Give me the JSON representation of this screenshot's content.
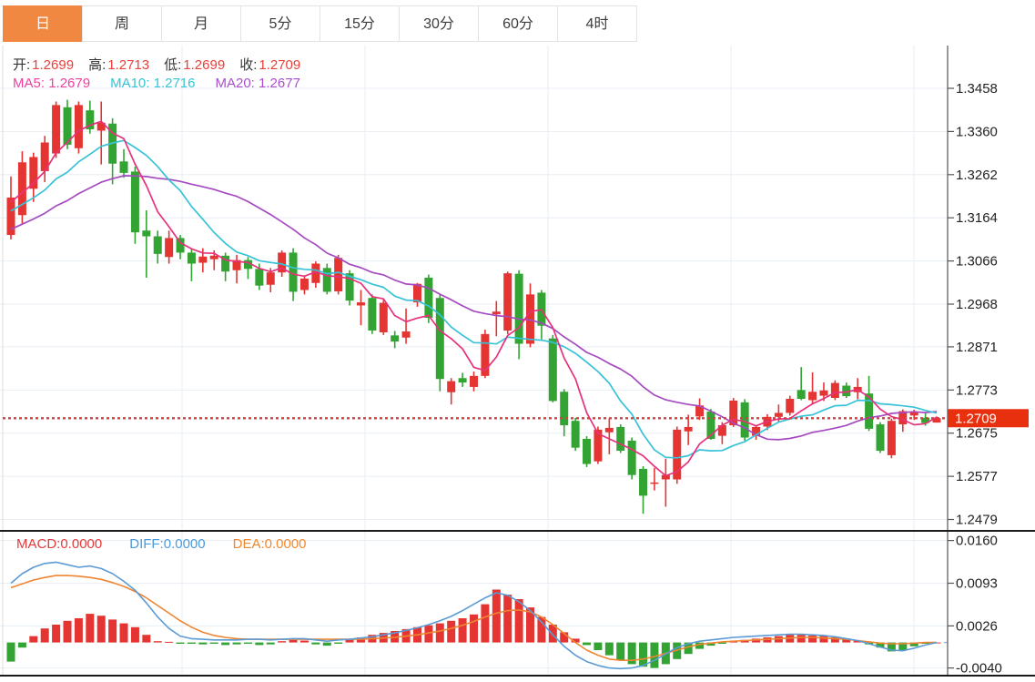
{
  "toolbar": {
    "tabs": [
      {
        "label": "日",
        "active": true
      },
      {
        "label": "周",
        "active": false
      },
      {
        "label": "月",
        "active": false
      },
      {
        "label": "5分",
        "active": false
      },
      {
        "label": "15分",
        "active": false
      },
      {
        "label": "30分",
        "active": false
      },
      {
        "label": "60分",
        "active": false
      },
      {
        "label": "4时",
        "active": false
      }
    ]
  },
  "ohlc": {
    "open_label": "开:",
    "open": "1.2699",
    "high_label": "高:",
    "high": "1.2713",
    "low_label": "低:",
    "low": "1.2699",
    "close_label": "收:",
    "close": "1.2709"
  },
  "ma": {
    "ma5_label": "MA5:",
    "ma5": "1.2679",
    "ma10_label": "MA10:",
    "ma10": "1.2716",
    "ma20_label": "MA20:",
    "ma20": "1.2677"
  },
  "macd_header": {
    "macd_label": "MACD:",
    "macd": "0.0000",
    "diff_label": "DIFF:",
    "diff": "0.0000",
    "dea_label": "DEA:",
    "dea": "0.0000"
  },
  "colors": {
    "up_candle": "#e53532",
    "down_candle": "#33a433",
    "ma5_line": "#e8317c",
    "ma10_line": "#38c2d8",
    "ma20_line": "#a54ac0",
    "diff_line": "#5b9bd5",
    "dea_line": "#ee8532",
    "price_badge": "#e8300f",
    "dotted_price_line": "#df3b3b",
    "active_tab": "#f08842",
    "grid": "#e8eef3",
    "axis": "#555555",
    "axis_text": "#222222",
    "panel_border": "#1a1a1a"
  },
  "chart_data": [
    {
      "type": "candlestick",
      "title": "Daily (日) candlestick price chart with MA5/MA10/MA20 overlays",
      "legend_position": "top-left",
      "grid": true,
      "ylabel": "price",
      "y_ticks": [
        1.3458,
        1.336,
        1.3262,
        1.3164,
        1.3066,
        1.2968,
        1.2871,
        1.2773,
        1.2675,
        1.2577,
        1.2479
      ],
      "current_price": 1.2709,
      "last_candle": {
        "open": 1.2699,
        "high": 1.2713,
        "low": 1.2699,
        "close": 1.2709
      },
      "ma_values": {
        "ma5": 1.2679,
        "ma10": 1.2716,
        "ma20": 1.2677
      },
      "ohlc_format": [
        "open",
        "high",
        "low",
        "close"
      ],
      "candles": [
        [
          1.3125,
          1.3258,
          1.3115,
          1.321
        ],
        [
          1.317,
          1.3315,
          1.315,
          1.329
        ],
        [
          1.323,
          1.3312,
          1.32,
          1.3302
        ],
        [
          1.327,
          1.335,
          1.3245,
          1.3335
        ],
        [
          1.331,
          1.3428,
          1.33,
          1.342
        ],
        [
          1.3415,
          1.3432,
          1.332,
          1.333
        ],
        [
          1.3322,
          1.3428,
          1.331,
          1.342
        ],
        [
          1.3408,
          1.343,
          1.3355,
          1.3365
        ],
        [
          1.3362,
          1.3428,
          1.3285,
          1.338
        ],
        [
          1.3378,
          1.339,
          1.324,
          1.3287
        ],
        [
          1.3292,
          1.332,
          1.3255,
          1.3266
        ],
        [
          1.3269,
          1.328,
          1.3105,
          1.3131
        ],
        [
          1.3135,
          1.3181,
          1.3028,
          1.3122
        ],
        [
          1.3122,
          1.3135,
          1.306,
          1.3082
        ],
        [
          1.3075,
          1.3135,
          1.306,
          1.3118
        ],
        [
          1.3118,
          1.3125,
          1.307,
          1.3085
        ],
        [
          1.3085,
          1.3095,
          1.302,
          1.306
        ],
        [
          1.3062,
          1.3095,
          1.304,
          1.3076
        ],
        [
          1.307,
          1.309,
          1.3045,
          1.3078
        ],
        [
          1.3078,
          1.3085,
          1.302,
          1.3042
        ],
        [
          1.3045,
          1.308,
          1.3015,
          1.3068
        ],
        [
          1.3068,
          1.3075,
          1.3025,
          1.3048
        ],
        [
          1.3048,
          1.306,
          1.3,
          1.301
        ],
        [
          1.3012,
          1.305,
          1.2995,
          1.304
        ],
        [
          1.304,
          1.309,
          1.303,
          1.3085
        ],
        [
          1.3085,
          1.3095,
          1.2975,
          1.2996
        ],
        [
          1.3,
          1.303,
          1.299,
          1.3026
        ],
        [
          1.3016,
          1.3065,
          1.3005,
          1.306
        ],
        [
          1.305,
          1.306,
          1.299,
          1.2996
        ],
        [
          1.2997,
          1.308,
          1.299,
          1.3073
        ],
        [
          1.3038,
          1.3045,
          1.2965,
          1.2976
        ],
        [
          1.2965,
          1.3,
          1.292,
          1.2972
        ],
        [
          1.2982,
          1.299,
          1.29,
          1.2908
        ],
        [
          1.2904,
          1.2978,
          1.2898,
          1.2971
        ],
        [
          1.2897,
          1.2907,
          1.2868,
          1.2883
        ],
        [
          1.2892,
          1.2958,
          1.2878,
          1.2906
        ],
        [
          1.2972,
          1.3016,
          1.2962,
          1.3014
        ],
        [
          1.3028,
          1.3035,
          1.2925,
          1.2937
        ],
        [
          1.2982,
          1.299,
          1.277,
          1.2798
        ],
        [
          1.2768,
          1.28,
          1.274,
          1.2793
        ],
        [
          1.28,
          1.2812,
          1.278,
          1.279
        ],
        [
          1.278,
          1.2815,
          1.277,
          1.2805
        ],
        [
          1.2805,
          1.291,
          1.28,
          1.29
        ],
        [
          1.2945,
          1.2975,
          1.2895,
          1.2951
        ],
        [
          1.2908,
          1.3042,
          1.29,
          1.3038
        ],
        [
          1.3037,
          1.3045,
          1.2843,
          1.2878
        ],
        [
          1.2878,
          1.3015,
          1.287,
          1.299
        ],
        [
          1.2994,
          1.3,
          1.2888,
          1.2919
        ],
        [
          1.289,
          1.2898,
          1.2745,
          1.2748
        ],
        [
          1.2769,
          1.2775,
          1.2668,
          1.2693
        ],
        [
          1.2703,
          1.271,
          1.2635,
          1.2642
        ],
        [
          1.2662,
          1.2668,
          1.2598,
          1.2605
        ],
        [
          1.2611,
          1.269,
          1.2605,
          1.2683
        ],
        [
          1.2677,
          1.2709,
          1.2627,
          1.2687
        ],
        [
          1.2689,
          1.2695,
          1.263,
          1.2635
        ],
        [
          1.2658,
          1.2665,
          1.257,
          1.258
        ],
        [
          1.2594,
          1.26,
          1.2492,
          1.2533
        ],
        [
          1.256,
          1.2596,
          1.2545,
          1.2563
        ],
        [
          1.257,
          1.2617,
          1.2508,
          1.258
        ],
        [
          1.257,
          1.269,
          1.256,
          1.2683
        ],
        [
          1.2679,
          1.2717,
          1.2648,
          1.2689
        ],
        [
          1.2713,
          1.2754,
          1.2705,
          1.2738
        ],
        [
          1.2724,
          1.273,
          1.266,
          1.2662
        ],
        [
          1.2669,
          1.27,
          1.265,
          1.2693
        ],
        [
          1.2693,
          1.2755,
          1.2689,
          1.2749
        ],
        [
          1.2745,
          1.2752,
          1.2658,
          1.2665
        ],
        [
          1.2669,
          1.2693,
          1.266,
          1.2689
        ],
        [
          1.269,
          1.2718,
          1.2682,
          1.2712
        ],
        [
          1.2712,
          1.274,
          1.27,
          1.2721
        ],
        [
          1.2721,
          1.276,
          1.2715,
          1.2753
        ],
        [
          1.2773,
          1.2825,
          1.275,
          1.2753
        ],
        [
          1.275,
          1.2813,
          1.2742,
          1.2769
        ],
        [
          1.276,
          1.279,
          1.2748,
          1.2772
        ],
        [
          1.2755,
          1.2795,
          1.275,
          1.2789
        ],
        [
          1.2783,
          1.279,
          1.2755,
          1.2759
        ],
        [
          1.2768,
          1.28,
          1.2752,
          1.278
        ],
        [
          1.2765,
          1.2805,
          1.268,
          1.2685
        ],
        [
          1.2695,
          1.27,
          1.263,
          1.2635
        ],
        [
          1.2625,
          1.2708,
          1.2618,
          1.2703
        ],
        [
          1.2695,
          1.2729,
          1.2678,
          1.2725
        ],
        [
          1.2715,
          1.2728,
          1.2705,
          1.2722
        ],
        [
          1.271,
          1.2722,
          1.2692,
          1.2698
        ],
        [
          1.2699,
          1.2713,
          1.2699,
          1.2709
        ]
      ]
    },
    {
      "type": "bar",
      "title": "MACD indicator panel (histogram with DIFF and DEA lines)",
      "legend_position": "top-left",
      "grid": true,
      "y_ticks": [
        0.016,
        0.0093,
        0.0026,
        -0.004
      ],
      "current_values": {
        "macd": 0.0,
        "diff": 0.0,
        "dea": 0.0
      },
      "histogram": [
        -0.003,
        -0.0008,
        0.001,
        0.0022,
        0.0028,
        0.0034,
        0.0038,
        0.0045,
        0.0042,
        0.0036,
        0.003,
        0.0024,
        0.0012,
        0.0002,
        0.0001,
        -0.0002,
        -0.0002,
        -0.0003,
        -0.0002,
        -0.0004,
        -0.0003,
        -0.0002,
        -0.0004,
        -0.0003,
        0.0002,
        0.0004,
        0.0003,
        -0.0003,
        -0.0005,
        -0.0002,
        0.0004,
        0.0008,
        0.0012,
        0.0015,
        0.0018,
        0.0021,
        0.0024,
        0.0027,
        0.003,
        0.0034,
        0.0038,
        0.0044,
        0.006,
        0.0083,
        0.0075,
        0.0068,
        0.0055,
        0.004,
        0.0028,
        0.0016,
        0.0006,
        -0.0004,
        -0.0012,
        -0.002,
        -0.0028,
        -0.0034,
        -0.0038,
        -0.004,
        -0.0034,
        -0.0026,
        -0.0018,
        -0.001,
        -0.0005,
        -0.0002,
        0.0002,
        0.0004,
        0.0006,
        0.0008,
        0.001,
        0.0012,
        0.0012,
        0.0011,
        0.001,
        0.0008,
        0.0006,
        0.0003,
        -0.0003,
        -0.0008,
        -0.0014,
        -0.0012,
        -0.0006,
        -0.0002,
        0.0
      ],
      "diff_line": [
        0.0093,
        0.0108,
        0.0118,
        0.0124,
        0.0126,
        0.0122,
        0.0118,
        0.012,
        0.0116,
        0.0108,
        0.0096,
        0.0082,
        0.0062,
        0.004,
        0.0022,
        0.001,
        0.0006,
        0.0005,
        0.0004,
        0.0004,
        0.0004,
        0.0005,
        0.0005,
        0.0004,
        0.0005,
        0.0006,
        0.0006,
        0.0004,
        0.0002,
        0.0004,
        0.0005,
        0.0007,
        0.0009,
        0.0012,
        0.0015,
        0.0019,
        0.0023,
        0.0028,
        0.0034,
        0.0041,
        0.005,
        0.006,
        0.007,
        0.0078,
        0.0074,
        0.0064,
        0.005,
        0.0032,
        0.0012,
        -0.0006,
        -0.002,
        -0.003,
        -0.0036,
        -0.004,
        -0.0041,
        -0.004,
        -0.0036,
        -0.0028,
        -0.0018,
        -0.0008,
        -0.0002,
        0.0002,
        0.0004,
        0.0006,
        0.0008,
        0.0009,
        0.001,
        0.0011,
        0.0012,
        0.0013,
        0.0013,
        0.0012,
        0.0011,
        0.0009,
        0.0006,
        0.0003,
        -0.0002,
        -0.0007,
        -0.0012,
        -0.0013,
        -0.0009,
        -0.0004,
        0.0
      ],
      "dea_line": [
        0.0086,
        0.0092,
        0.0098,
        0.0102,
        0.0105,
        0.0105,
        0.0104,
        0.0102,
        0.0099,
        0.0094,
        0.0088,
        0.008,
        0.007,
        0.0058,
        0.0046,
        0.0034,
        0.0024,
        0.0016,
        0.0011,
        0.0008,
        0.0006,
        0.0005,
        0.0005,
        0.0005,
        0.0005,
        0.0005,
        0.0005,
        0.0005,
        0.0005,
        0.0005,
        0.0005,
        0.0005,
        0.0006,
        0.0007,
        0.0008,
        0.001,
        0.0012,
        0.0015,
        0.0018,
        0.0022,
        0.0027,
        0.0033,
        0.004,
        0.0046,
        0.005,
        0.0051,
        0.0048,
        0.004,
        0.0028,
        0.0014,
        0.0,
        -0.0012,
        -0.002,
        -0.0026,
        -0.0028,
        -0.0028,
        -0.0026,
        -0.0022,
        -0.0017,
        -0.0012,
        -0.0007,
        -0.0003,
        -0.0001,
        0.0001,
        0.0002,
        0.0003,
        0.0004,
        0.0005,
        0.0006,
        0.0007,
        0.0008,
        0.0008,
        0.0007,
        0.0006,
        0.0005,
        0.0003,
        0.0001,
        -0.0001,
        -0.0002,
        -0.0002,
        -0.0001,
        0.0,
        0.0
      ]
    }
  ]
}
